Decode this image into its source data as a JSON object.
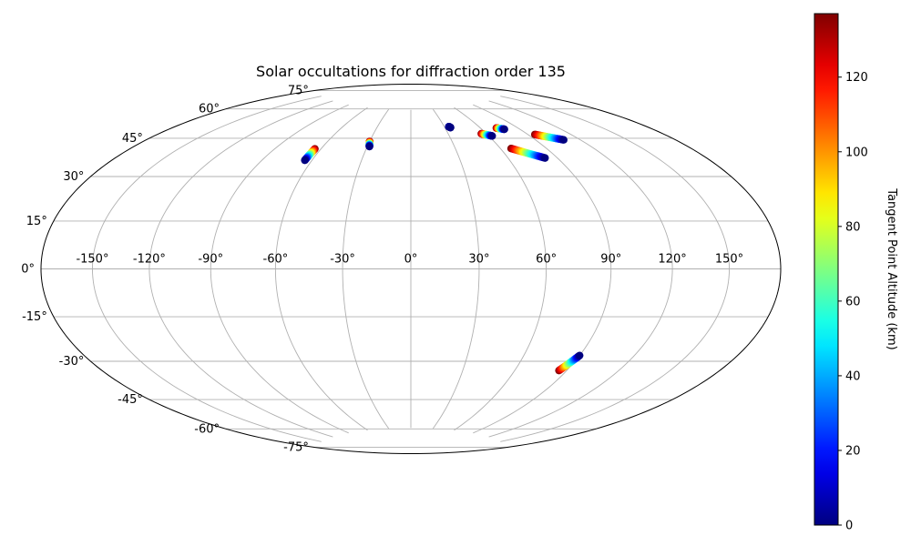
{
  "chart_data": {
    "type": "scatter",
    "projection": "hammer",
    "title": "Solar occultations for diffraction order 135",
    "x_ticks": [
      "-150°",
      "-120°",
      "-90°",
      "-60°",
      "-30°",
      "0°",
      "30°",
      "60°",
      "90°",
      "120°",
      "150°"
    ],
    "x_tick_values": [
      -150,
      -120,
      -90,
      -60,
      -30,
      0,
      30,
      60,
      90,
      120,
      150
    ],
    "y_ticks": [
      "75°",
      "60°",
      "45°",
      "30°",
      "15°",
      "0°",
      "-15°",
      "-30°",
      "-45°",
      "-60°",
      "-75°"
    ],
    "y_tick_values": [
      75,
      60,
      45,
      30,
      15,
      0,
      -15,
      -30,
      -45,
      -60,
      -75
    ],
    "grid": true,
    "colormap": "jet",
    "colorbar": {
      "label": "Tangent Point Altitude (km)",
      "range": [
        0,
        137
      ],
      "ticks": [
        0,
        20,
        40,
        60,
        80,
        100,
        120
      ],
      "tick_labels": [
        "0",
        "20",
        "40",
        "60",
        "80",
        "100",
        "120"
      ]
    },
    "tracks": [
      {
        "start": {
          "lon": -64.0,
          "lat": 53.0,
          "alt": 137
        },
        "end": {
          "lon": -64.3,
          "lat": 47.5,
          "alt": 0
        }
      },
      {
        "start": {
          "lon": -30.0,
          "lat": 58.0,
          "alt": 137
        },
        "end": {
          "lon": -28.5,
          "lat": 55.5,
          "alt": 0
        }
      },
      {
        "start": {
          "lon": 34.0,
          "lat": 65.5,
          "alt": 5
        },
        "end": {
          "lon": 35.0,
          "lat": 65.0,
          "alt": 0
        }
      },
      {
        "start": {
          "lon": 56.0,
          "lat": 61.0,
          "alt": 137
        },
        "end": {
          "lon": 62.5,
          "lat": 59.5,
          "alt": 0
        }
      },
      {
        "start": {
          "lon": 73.0,
          "lat": 63.0,
          "alt": 137
        },
        "end": {
          "lon": 78.0,
          "lat": 62.0,
          "alt": 0
        }
      },
      {
        "start": {
          "lon": 67.0,
          "lat": 53.0,
          "alt": 137
        },
        "end": {
          "lon": 82.5,
          "lat": 47.5,
          "alt": 0
        }
      },
      {
        "start": {
          "lon": 95.0,
          "lat": 58.0,
          "alt": 137
        },
        "end": {
          "lon": 109.0,
          "lat": 54.0,
          "alt": 0
        }
      },
      {
        "start": {
          "lon": 85.5,
          "lat": -43.0,
          "alt": 137
        },
        "end": {
          "lon": 90.0,
          "lat": -36.0,
          "alt": 0
        }
      }
    ]
  }
}
